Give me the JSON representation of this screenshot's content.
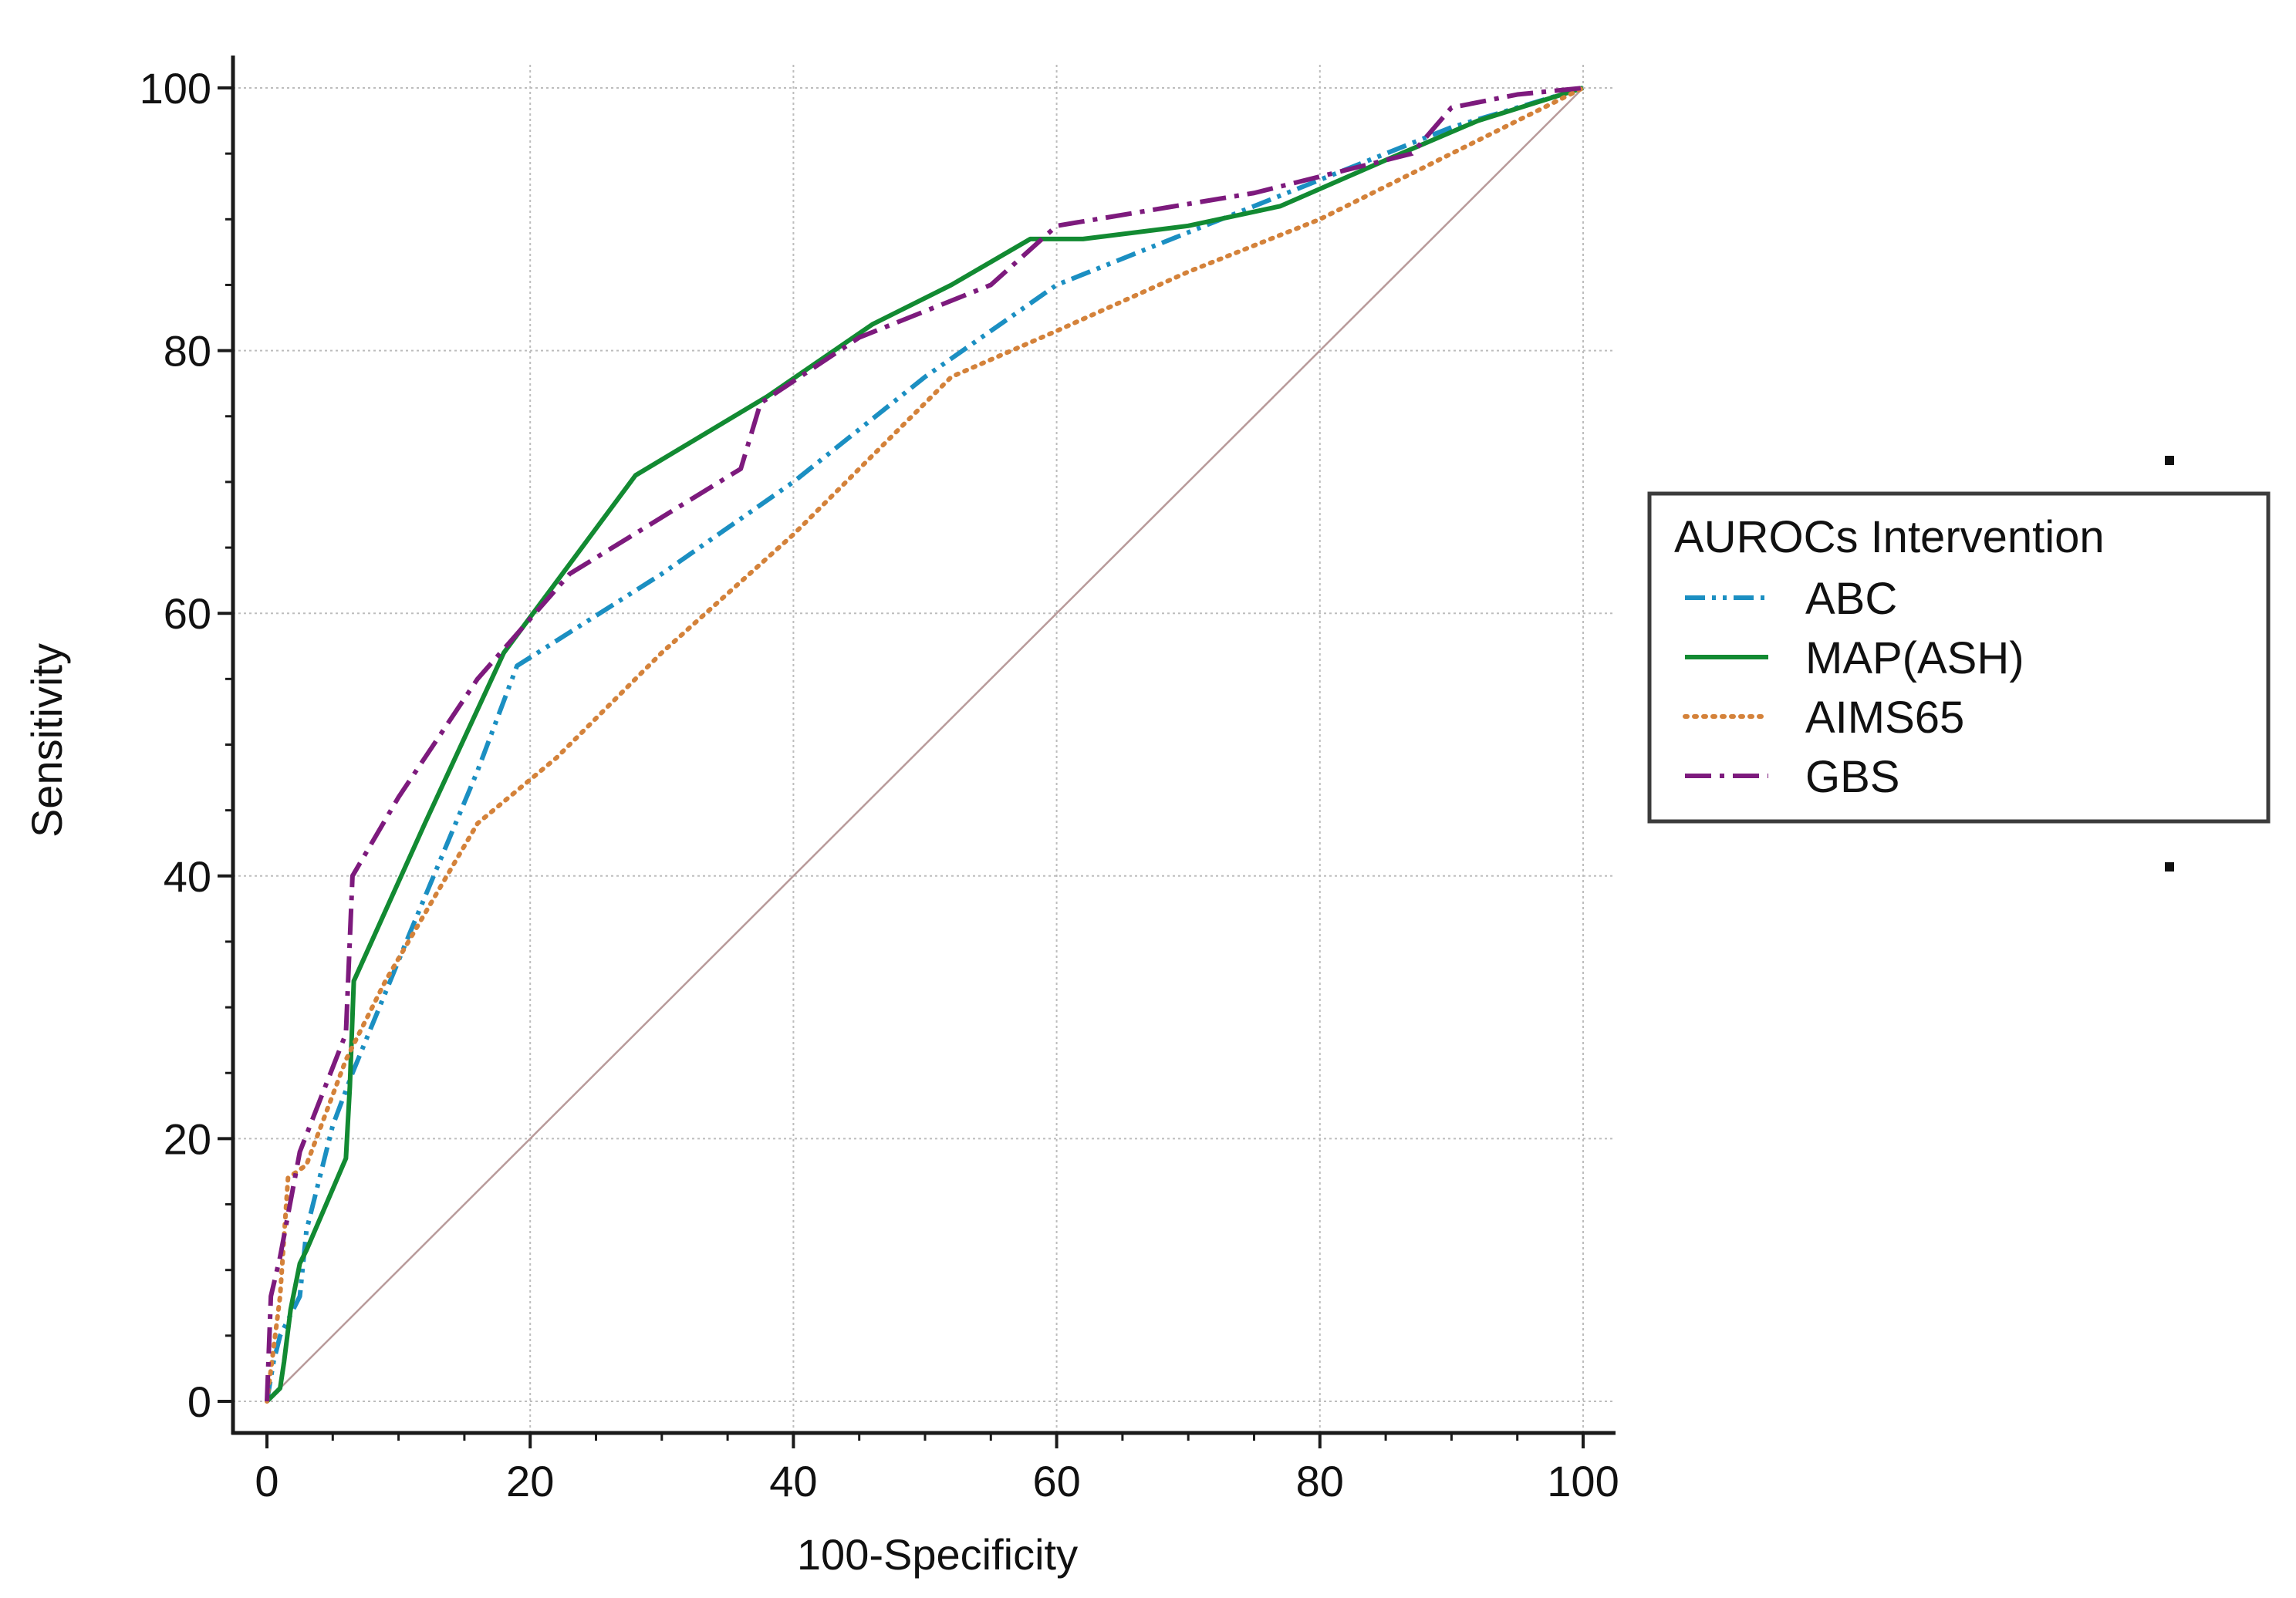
{
  "chart_data": {
    "type": "line",
    "title": "",
    "xlabel": "100-Specificity",
    "ylabel": "Sensitivity",
    "xlim": [
      0,
      100
    ],
    "ylim": [
      0,
      100
    ],
    "xticks": [
      0,
      20,
      40,
      60,
      80,
      100
    ],
    "yticks": [
      0,
      20,
      40,
      60,
      80,
      100
    ],
    "grid": true,
    "legend": {
      "title": "AUROCs Intervention",
      "position": "right"
    },
    "reference_line": {
      "name": "chance-diagonal",
      "color": "#b89a9a",
      "points": [
        [
          0,
          0
        ],
        [
          100,
          100
        ]
      ]
    },
    "series": [
      {
        "name": "ABC",
        "color": "#1b8fc2",
        "dash": "dash-dot-dot",
        "points": [
          [
            0,
            0
          ],
          [
            0.5,
            3
          ],
          [
            1,
            5
          ],
          [
            1.5,
            6
          ],
          [
            2,
            7
          ],
          [
            2.5,
            8
          ],
          [
            3,
            13
          ],
          [
            5,
            21
          ],
          [
            6.5,
            25
          ],
          [
            11,
            36
          ],
          [
            16,
            48
          ],
          [
            19,
            56
          ],
          [
            30,
            63
          ],
          [
            40,
            70
          ],
          [
            50,
            78
          ],
          [
            60,
            85
          ],
          [
            70,
            89
          ],
          [
            80,
            93
          ],
          [
            90,
            97
          ],
          [
            100,
            100
          ]
        ]
      },
      {
        "name": "MAP(ASH)",
        "color": "#128a32",
        "dash": "solid",
        "points": [
          [
            0,
            0
          ],
          [
            1,
            1
          ],
          [
            1.3,
            3
          ],
          [
            1.8,
            7
          ],
          [
            2.5,
            10.5
          ],
          [
            3,
            11.5
          ],
          [
            6,
            18.5
          ],
          [
            6.3,
            24
          ],
          [
            6.6,
            32
          ],
          [
            12,
            44
          ],
          [
            18,
            57
          ],
          [
            28,
            70.5
          ],
          [
            38,
            76.5
          ],
          [
            46,
            82
          ],
          [
            52,
            85
          ],
          [
            58,
            88.5
          ],
          [
            62,
            88.5
          ],
          [
            70,
            89.5
          ],
          [
            77,
            91
          ],
          [
            85,
            94.5
          ],
          [
            92,
            97.5
          ],
          [
            100,
            100
          ]
        ]
      },
      {
        "name": "AIMS65",
        "color": "#d4823a",
        "dash": "dotted",
        "points": [
          [
            0,
            0
          ],
          [
            1,
            8
          ],
          [
            1.6,
            17
          ],
          [
            3,
            18
          ],
          [
            6,
            26
          ],
          [
            9,
            32
          ],
          [
            16,
            44
          ],
          [
            22,
            49
          ],
          [
            30,
            57
          ],
          [
            40,
            66
          ],
          [
            52,
            78
          ],
          [
            60,
            81.5
          ],
          [
            70,
            86
          ],
          [
            80,
            90
          ],
          [
            90,
            95
          ],
          [
            100,
            100
          ]
        ]
      },
      {
        "name": "GBS",
        "color": "#7d1a7d",
        "dash": "dash-dot",
        "points": [
          [
            0,
            0
          ],
          [
            0.3,
            8
          ],
          [
            1,
            11
          ],
          [
            2.5,
            19
          ],
          [
            6,
            28
          ],
          [
            6.5,
            40
          ],
          [
            10,
            46
          ],
          [
            16,
            55
          ],
          [
            23,
            63
          ],
          [
            36,
            71
          ],
          [
            37.5,
            76
          ],
          [
            45,
            81
          ],
          [
            55,
            85
          ],
          [
            60,
            89.5
          ],
          [
            75,
            92
          ],
          [
            87,
            95
          ],
          [
            90,
            98.5
          ],
          [
            95,
            99.5
          ],
          [
            100,
            100
          ]
        ]
      }
    ]
  }
}
